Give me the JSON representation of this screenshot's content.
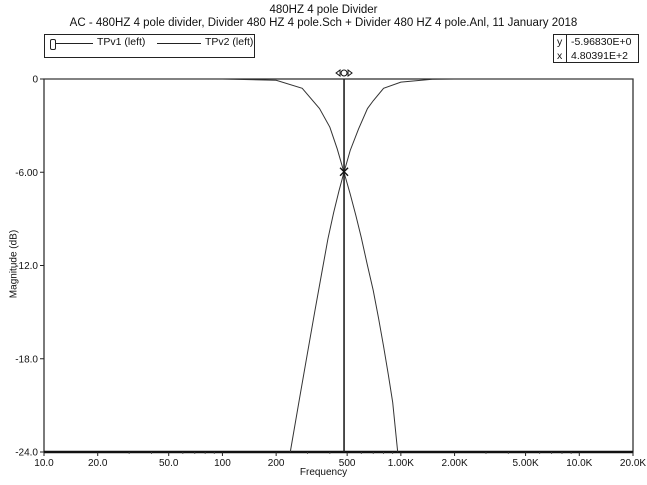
{
  "header": {
    "title": "480HZ 4 pole Divider",
    "subtitle": "AC - 480HZ 4 pole divider,     Divider 480 HZ 4 pole.Sch + Divider 480 HZ 4 pole.Anl,    11 January 2018"
  },
  "legend": {
    "items": [
      "TPv1 (left)",
      "TPv2 (left)"
    ]
  },
  "readout": {
    "y_key": "y",
    "y_value": "-5.96830E+0",
    "x_key": "x",
    "x_value": "4.80391E+2"
  },
  "chart_data": {
    "type": "line",
    "xlabel": "Frequency",
    "ylabel": "Magnitude (dB)",
    "x_scale": "log",
    "xlim": [
      10,
      20000
    ],
    "ylim": [
      -24,
      0
    ],
    "grid": false,
    "legend_position": "top-left",
    "x_ticks": [
      {
        "value": 10,
        "label": "10.0"
      },
      {
        "value": 20,
        "label": "20.0"
      },
      {
        "value": 50,
        "label": "50.0"
      },
      {
        "value": 100,
        "label": "100"
      },
      {
        "value": 200,
        "label": "200"
      },
      {
        "value": 500,
        "label": "500"
      },
      {
        "value": 1000,
        "label": "1.00K"
      },
      {
        "value": 2000,
        "label": "2.00K"
      },
      {
        "value": 5000,
        "label": "5.00K"
      },
      {
        "value": 10000,
        "label": "10.0K"
      },
      {
        "value": 20000,
        "label": "20.0K"
      }
    ],
    "y_ticks": [
      {
        "value": 0,
        "label": "0"
      },
      {
        "value": -6,
        "label": "-6.00"
      },
      {
        "value": -12,
        "label": "-12.0"
      },
      {
        "value": -18,
        "label": "-18.0"
      },
      {
        "value": -24,
        "label": "-24.0"
      }
    ],
    "series": [
      {
        "name": "TPv1 (left)",
        "x": [
          10,
          100,
          200,
          280,
          350,
          400,
          440,
          480,
          520,
          560,
          600,
          650,
          700,
          750,
          800,
          850,
          900,
          960
        ],
        "y": [
          0,
          0,
          -0.08,
          -0.6,
          -1.9,
          -3.1,
          -4.5,
          -6.0,
          -7.4,
          -8.8,
          -10.2,
          -12.0,
          -13.6,
          -15.4,
          -17.2,
          -19.0,
          -20.8,
          -24.0
        ]
      },
      {
        "name": "TPv2 (left)",
        "x": [
          240,
          270,
          300,
          330,
          360,
          390,
          420,
          450,
          480,
          520,
          580,
          650,
          700,
          800,
          1000,
          1500,
          2000,
          20000
        ],
        "y": [
          -24.0,
          -20.6,
          -17.6,
          -14.9,
          -12.5,
          -10.3,
          -8.6,
          -7.2,
          -6.0,
          -4.6,
          -3.2,
          -1.9,
          -1.4,
          -0.6,
          -0.2,
          -0.02,
          0,
          0
        ]
      }
    ],
    "cursor": {
      "x": 480.391,
      "y": -5.9683
    }
  }
}
